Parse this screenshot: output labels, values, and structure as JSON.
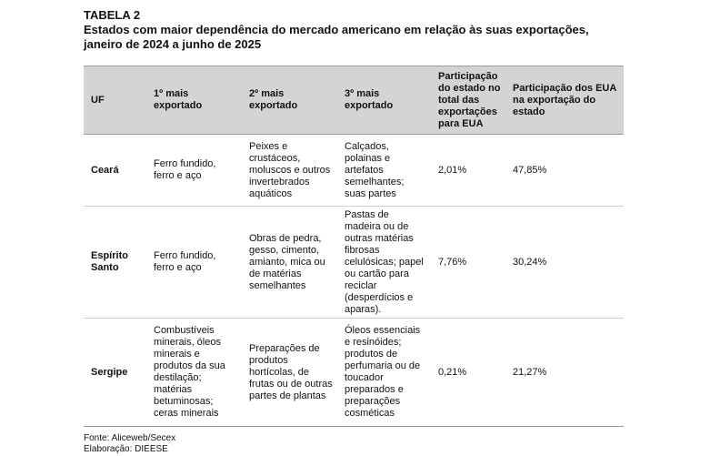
{
  "doc": {
    "table_label": "TABELA 2",
    "title": "Estados com maior dependência do mercado americano em relação às suas exportações, janeiro de 2024 a junho de 2025",
    "source": "Fonte: Aliceweb/Secex",
    "elaboration": "Elaboração: DIEESE"
  },
  "table": {
    "headers": [
      "UF",
      "1º mais exportado",
      "2º mais exportado",
      "3º mais exportado",
      "Participação do estado no total das exportações para EUA",
      "Participação dos EUA na exportação do estado"
    ],
    "rows": [
      {
        "uf": "Ceará",
        "first": "Ferro fundido, ferro e aço",
        "second": "Peixes e crustáceos, moluscos e outros invertebrados aquáticos",
        "third": "Calçados, polainas e artefatos semelhantes; suas partes",
        "share_state": "2,01%",
        "share_usa": "47,85%"
      },
      {
        "uf": "Espírito Santo",
        "first": "Ferro fundido, ferro e aço",
        "second": "Obras de pedra, gesso, cimento, amianto, mica ou de matérias semelhantes",
        "third": "Pastas de madeira ou de outras matérias fibrosas celulósicas; papel ou cartão para reciclar (desperdícios e aparas).",
        "share_state": "7,76%",
        "share_usa": "30,24%"
      },
      {
        "uf": "Sergipe",
        "first": "Combustíveis minerais, óleos minerais e produtos da sua destilação; matérias betuminosas; ceras minerais",
        "second": "Preparações de produtos hortícolas, de frutas ou de outras partes de plantas",
        "third": "Óleos essenciais e resinóides; produtos de perfumaria ou de toucador preparados e preparações cosméticas",
        "share_state": "0,21%",
        "share_usa": "21,27%"
      }
    ]
  }
}
